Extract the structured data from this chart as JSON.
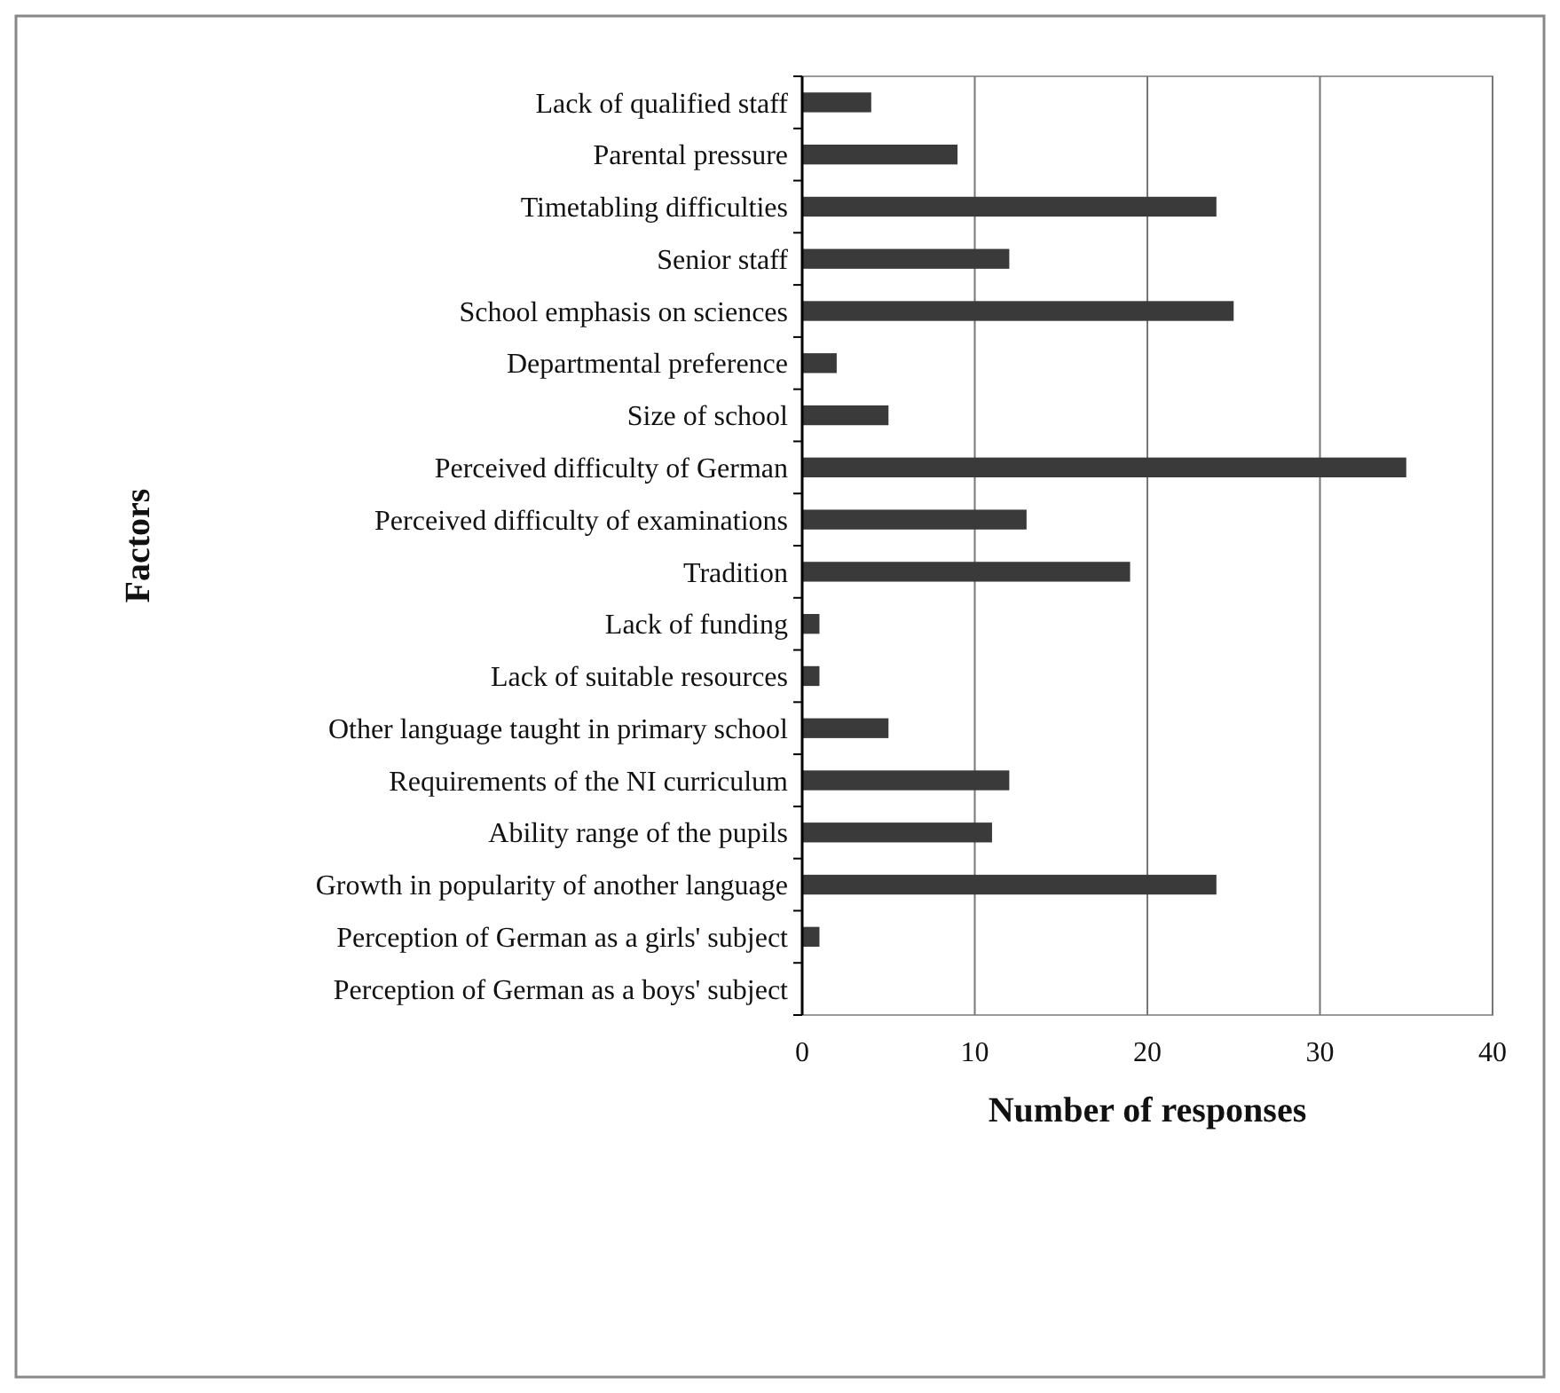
{
  "chart_data": {
    "type": "bar",
    "orientation": "horizontal",
    "xlabel": "Number of responses",
    "ylabel": "Factors",
    "categories": [
      "Lack of qualified staff",
      "Parental pressure",
      "Timetabling difficulties",
      "Senior staff",
      "School emphasis on sciences",
      "Departmental preference",
      "Size of school",
      "Perceived difficulty of German",
      "Perceived difficulty of examinations",
      "Tradition",
      "Lack of funding",
      "Lack of suitable resources",
      "Other language taught in primary school",
      "Requirements of the NI curriculum",
      "Ability range of the pupils",
      "Growth in popularity of another language",
      "Perception of German as a girls' subject",
      "Perception of German as a boys' subject"
    ],
    "values": [
      4,
      9,
      24,
      12,
      25,
      2,
      5,
      35,
      13,
      19,
      1,
      1,
      5,
      12,
      11,
      24,
      1,
      0
    ],
    "color": "#3a3a3a",
    "xlim": [
      0,
      40
    ],
    "xticks": [
      0,
      10,
      20,
      30,
      40
    ],
    "grid": "x"
  }
}
